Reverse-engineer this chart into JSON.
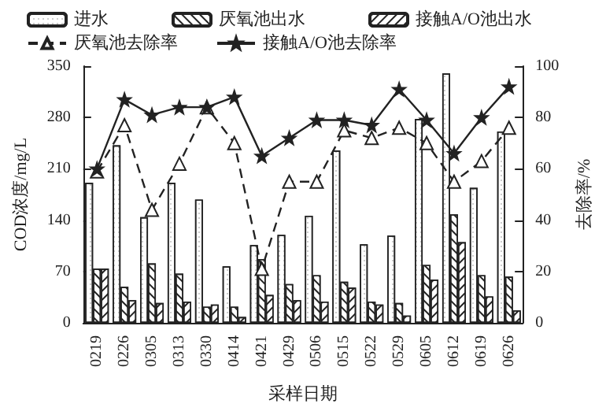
{
  "chart_data": {
    "type": "bar",
    "xlabel": "采样日期",
    "ylabel": "COD浓度/mg/L",
    "y2label": "去除率/%",
    "categories": [
      "0219",
      "0226",
      "0305",
      "0313",
      "0330",
      "0414",
      "0421",
      "0429",
      "0506",
      "0515",
      "0522",
      "0529",
      "0605",
      "0612",
      "0619",
      "0626"
    ],
    "series": [
      {
        "name": "进水",
        "color": "#ffffff",
        "values": [
          191,
          242,
          144,
          191,
          168,
          77,
          106,
          120,
          146,
          235,
          107,
          119,
          278,
          340,
          184,
          261
        ]
      },
      {
        "name": "厌氧池出水",
        "color": "#ffffff",
        "values": [
          74,
          49,
          81,
          67,
          22,
          22,
          87,
          53,
          65,
          56,
          29,
          27,
          79,
          148,
          65,
          63
        ]
      },
      {
        "name": "接触A/O池出水",
        "color": "#ffffff",
        "values": [
          74,
          31,
          27,
          29,
          25,
          8,
          38,
          31,
          29,
          48,
          25,
          10,
          59,
          110,
          36,
          17
        ]
      },
      {
        "name": "厌氧池去除率",
        "type": "line",
        "axis": "y2",
        "color": "#222222",
        "marker": "triangle",
        "line_style": "dashed",
        "values": [
          59,
          77,
          44,
          62,
          84,
          70,
          21,
          55,
          55,
          75,
          72,
          76,
          70,
          55,
          63,
          76
        ]
      },
      {
        "name": "接触A/O池去除率",
        "type": "line",
        "axis": "y2",
        "color": "#222222",
        "marker": "star",
        "line_style": "solid",
        "values": [
          60,
          87,
          81,
          84,
          84,
          88,
          65,
          72,
          79,
          79,
          77,
          91,
          79,
          66,
          80,
          92
        ]
      }
    ],
    "ylim": [
      0,
      350
    ],
    "yticks": [
      0,
      70,
      140,
      210,
      280,
      350
    ],
    "y2lim": [
      0,
      100
    ],
    "y2ticks": [
      0,
      20,
      40,
      60,
      80,
      100
    ],
    "grid": false,
    "legend": "top"
  }
}
